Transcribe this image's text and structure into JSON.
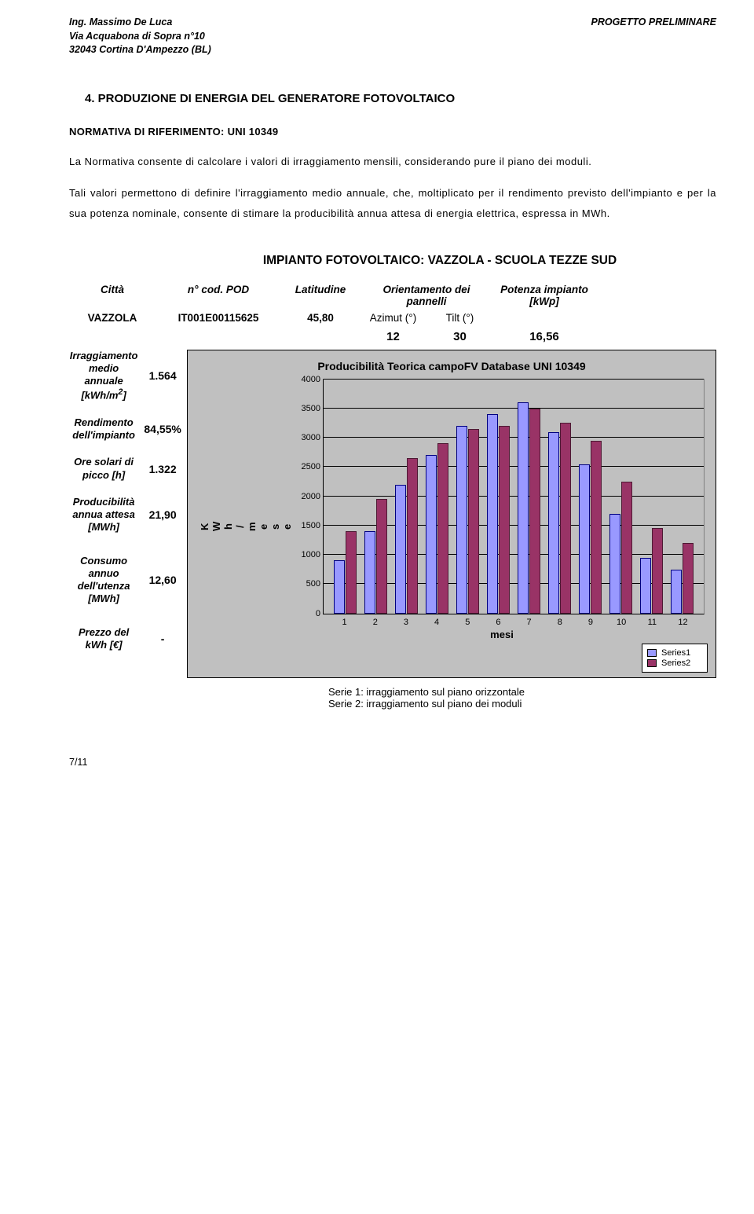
{
  "header": {
    "left_line1": "Ing. Massimo De Luca",
    "left_line2": "Via Acquabona di Sopra n°10",
    "left_line3": "32043 Cortina D'Ampezzo (BL)",
    "right": "PROGETTO PRELIMINARE"
  },
  "section": {
    "title": "4. PRODUZIONE DI ENERGIA DEL GENERATORE FOTOVOLTAICO",
    "ref": "NORMATIVA DI RIFERIMENTO: UNI 10349",
    "p1": "La Normativa consente di calcolare i valori di irraggiamento mensili, considerando pure il piano dei moduli.",
    "p2": "Tali valori permettono di definire l'irraggiamento medio annuale, che, moltiplicato per il rendimento previsto dell'impianto e per la sua potenza nominale, consente di stimare la producibilità annua attesa di energia elettrica, espressa in MWh."
  },
  "impianto": {
    "title": "IMPIANTO FOTOVOLTAICO: VAZZOLA - SCUOLA TEZZE SUD",
    "h_citta": "Città",
    "h_pod": "n° cod. POD",
    "h_lat": "Latitudine",
    "h_orient": "Orientamento dei pannelli",
    "h_pot": "Potenza impianto [kWp]",
    "v_citta": "VAZZOLA",
    "v_pod": "IT001E00115625",
    "v_lat": "45,80",
    "v_azimut_h": "Azimut (°)",
    "v_tilt_h": "Tilt (°)",
    "v_azimut": "12",
    "v_tilt": "30",
    "v_pot": "16,56"
  },
  "params": {
    "irrag_l": "Irraggiamento medio annuale [kWh/m²]",
    "irrag_v": "1.564",
    "rend_l": "Rendimento dell'impianto",
    "rend_v": "84,55%",
    "ore_l": "Ore solari di picco [h]",
    "ore_v": "1.322",
    "prod_l": "Producibilità annua attesa [MWh]",
    "prod_v": "21,90",
    "cons_l": "Consumo annuo dell'utenza [MWh]",
    "cons_v": "12,60",
    "prezzo_l": "Prezzo del kWh [€]",
    "prezzo_v": "-"
  },
  "chart": {
    "title": "Producibilità Teorica campoFV Database UNI 10349",
    "ylabel": "KWh/mese",
    "xlabel": "mesi",
    "ymax": 4000,
    "ystep": 500,
    "yticks": [
      "0",
      "500",
      "1000",
      "1500",
      "2000",
      "2500",
      "3000",
      "3500",
      "4000"
    ],
    "xticks": [
      "1",
      "2",
      "3",
      "4",
      "5",
      "6",
      "7",
      "8",
      "9",
      "10",
      "11",
      "12"
    ],
    "series1": [
      900,
      1400,
      2200,
      2700,
      3200,
      3400,
      3600,
      3100,
      2550,
      1700,
      950,
      750
    ],
    "series2": [
      1400,
      1950,
      2650,
      2900,
      3150,
      3200,
      3500,
      3250,
      2950,
      2250,
      1450,
      1200
    ],
    "s1_label": "Series1",
    "s2_label": "Series2",
    "s1_color": "#9999ff",
    "s2_color": "#993366",
    "bg_color": "#c0c0c0"
  },
  "caption": {
    "l1": "Serie 1: irraggiamento sul piano orizzontale",
    "l2": "Serie 2: irraggiamento sul piano dei moduli"
  },
  "footer": "7/11"
}
